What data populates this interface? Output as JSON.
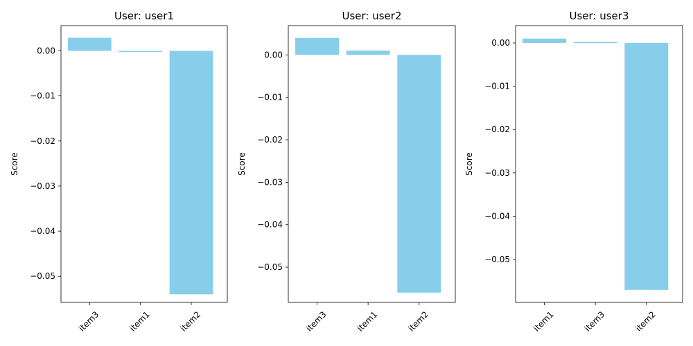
{
  "chart_data": [
    {
      "type": "bar",
      "title": "User: user1",
      "xlabel": "",
      "ylabel": "Score",
      "categories": [
        "item3",
        "item1",
        "item2"
      ],
      "values": [
        0.0029,
        -0.0002,
        -0.054
      ],
      "ylim": [
        -0.0558,
        0.0056
      ],
      "yticks": [
        0.0,
        -0.01,
        -0.02,
        -0.03,
        -0.04,
        -0.05
      ],
      "ytick_labels": [
        "0.00",
        "−0.01",
        "−0.02",
        "−0.03",
        "−0.04",
        "−0.05"
      ],
      "bar_color": "#87CEEB",
      "grid": false
    },
    {
      "type": "bar",
      "title": "User: user2",
      "xlabel": "",
      "ylabel": "Score",
      "categories": [
        "item3",
        "item1",
        "item2"
      ],
      "values": [
        0.004,
        0.001,
        -0.056
      ],
      "ylim": [
        -0.0583,
        0.0069
      ],
      "yticks": [
        0.0,
        -0.01,
        -0.02,
        -0.03,
        -0.04,
        -0.05
      ],
      "ytick_labels": [
        "0.00",
        "−0.01",
        "−0.02",
        "−0.03",
        "−0.04",
        "−0.05"
      ],
      "bar_color": "#87CEEB",
      "grid": false
    },
    {
      "type": "bar",
      "title": "User: user3",
      "xlabel": "",
      "ylabel": "Score",
      "categories": [
        "item1",
        "item3",
        "item2"
      ],
      "values": [
        0.001,
        0.0002,
        -0.057
      ],
      "ylim": [
        -0.0599,
        0.004
      ],
      "yticks": [
        0.0,
        -0.01,
        -0.02,
        -0.03,
        -0.04,
        -0.05
      ],
      "ytick_labels": [
        "0.00",
        "−0.01",
        "−0.02",
        "−0.03",
        "−0.04",
        "−0.05"
      ],
      "bar_color": "#87CEEB",
      "grid": false
    }
  ]
}
